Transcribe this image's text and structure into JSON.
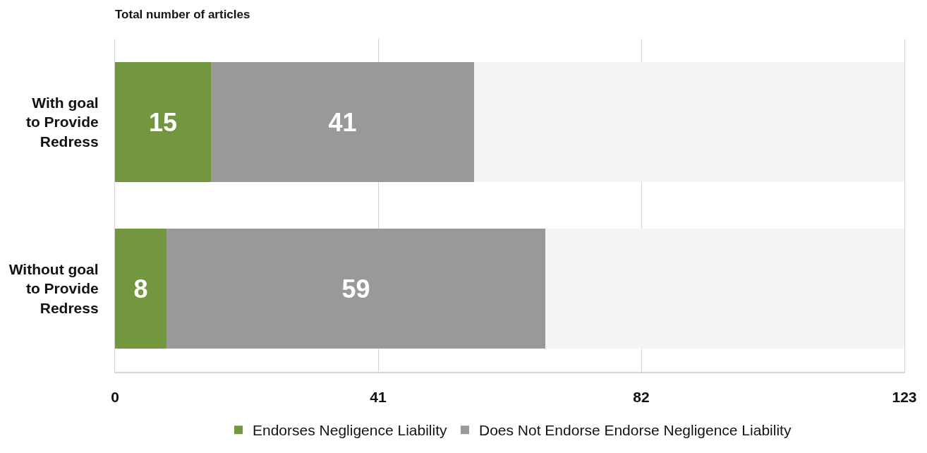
{
  "chart_data": {
    "type": "bar",
    "orientation": "horizontal",
    "stacked": true,
    "title": "Total number of articles",
    "categories": [
      "With goal\nto Provide\nRedress",
      "Without goal\nto Provide\nRedress"
    ],
    "series": [
      {
        "name": "Endorses Negligence Liability",
        "color": "#72973f",
        "values": [
          15,
          8
        ],
        "value_labels": [
          "15",
          "8"
        ]
      },
      {
        "name": "Does Not Endorse Endorse Negligence Liability",
        "color": "#999999",
        "values": [
          41,
          59
        ],
        "value_labels": [
          "41",
          "59"
        ]
      },
      {
        "color": "#f5f5f5",
        "values": [
          67,
          56
        ]
      }
    ],
    "xlim": [
      0,
      123
    ],
    "xticks": [
      0,
      41,
      82,
      123
    ],
    "grid": "x",
    "legend": "bottom"
  }
}
